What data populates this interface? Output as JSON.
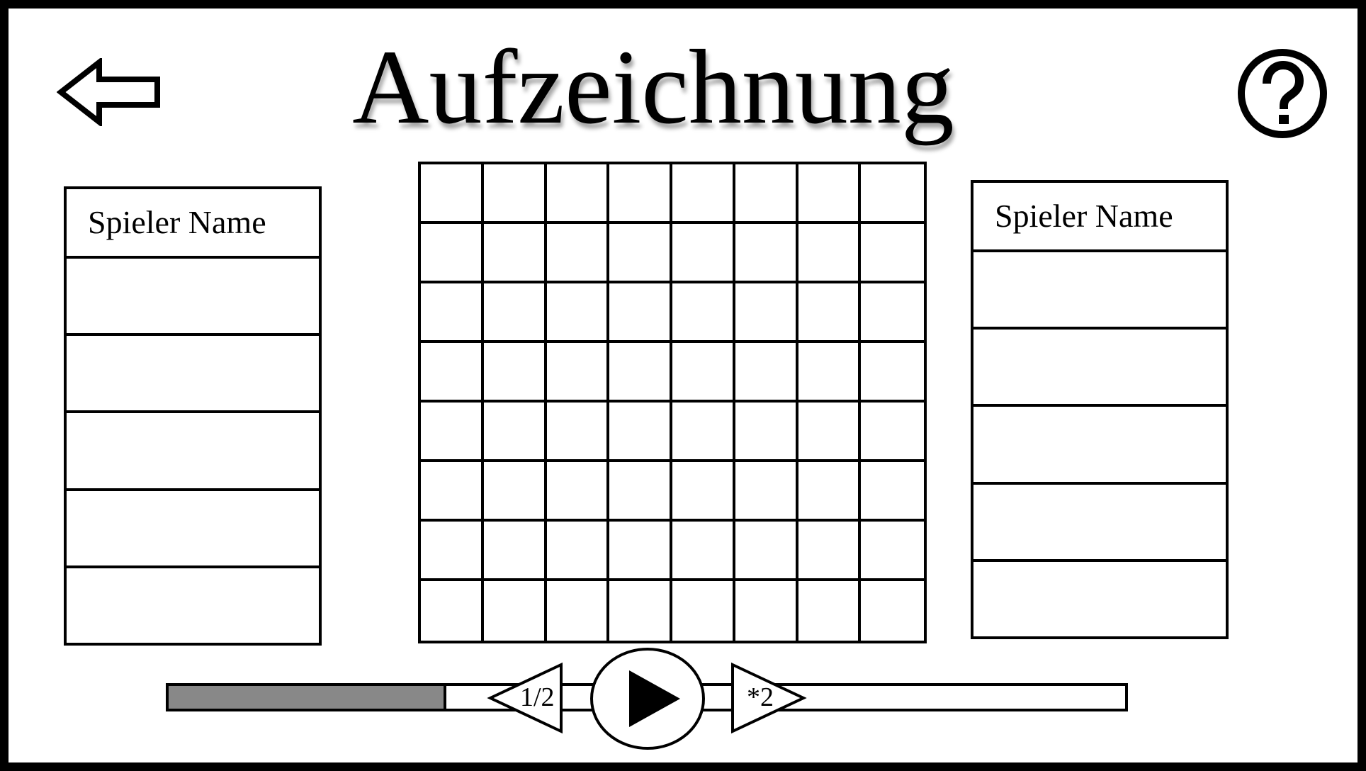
{
  "header": {
    "title": "Aufzeichnung",
    "back_icon": "arrow-left-icon",
    "help_icon": "question-mark-circle-icon"
  },
  "players": {
    "left": {
      "name": "Spieler Name",
      "rows": [
        "",
        "",
        "",
        "",
        ""
      ]
    },
    "right": {
      "name": "Spieler Name",
      "rows": [
        "",
        "",
        "",
        "",
        ""
      ]
    }
  },
  "board": {
    "rows": 8,
    "columns": 8
  },
  "playback": {
    "progress_fraction": 0.29,
    "slow_label": "1/2",
    "fast_label": "*2",
    "play_icon": "play-icon",
    "fill_color": "#888888"
  }
}
